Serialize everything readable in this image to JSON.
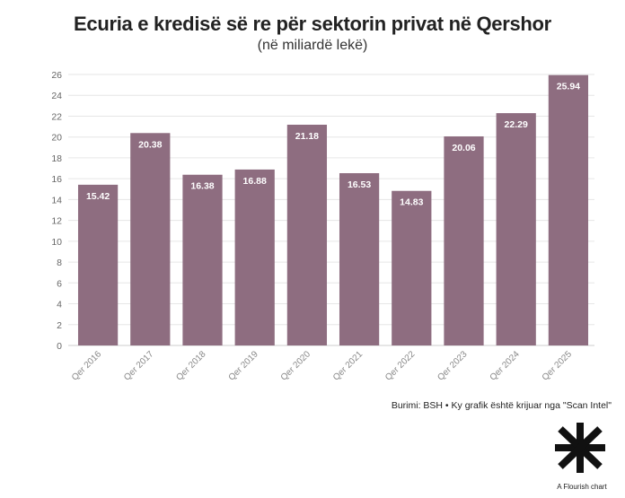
{
  "header": {
    "title": "Ecuria e kredisë së re për sektorin privat në Qershor",
    "subtitle": "(në miliardë lekë)"
  },
  "chart_data": {
    "type": "bar",
    "categories": [
      "Qer 2016",
      "Qer 2017",
      "Qer 2018",
      "Qer 2019",
      "Qer 2020",
      "Qer 2021",
      "Qer 2022",
      "Qer 2023",
      "Qer 2024",
      "Qer 2025"
    ],
    "values": [
      15.42,
      20.38,
      16.38,
      16.88,
      21.18,
      16.53,
      14.83,
      20.06,
      22.29,
      25.94
    ],
    "value_labels": [
      "15.42",
      "20.38",
      "16.38",
      "16.88",
      "21.18",
      "16.53",
      "14.83",
      "20.06",
      "22.29",
      "25.94"
    ],
    "y_ticks": [
      0,
      2,
      4,
      6,
      8,
      10,
      12,
      14,
      16,
      18,
      20,
      22,
      24,
      26
    ],
    "ylim": [
      0,
      26
    ],
    "grid": true,
    "bar_color": "#8e6d80",
    "grid_color": "#e6e6e6",
    "label_color": "#ffffff"
  },
  "footer": {
    "source": "Burimi: BSH • Ky grafik është krijuar nga \"Scan Intel\"",
    "credit": "A Flourish chart"
  }
}
